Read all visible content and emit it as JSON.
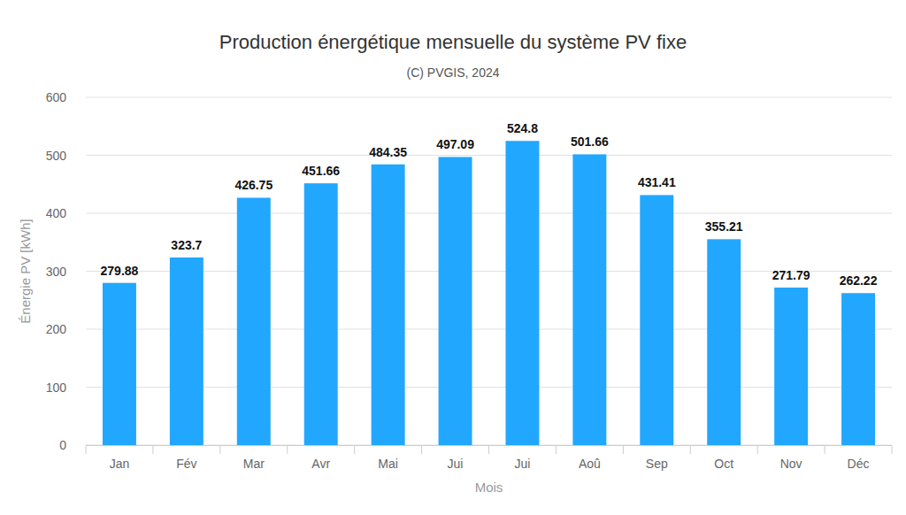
{
  "chart_data": {
    "type": "bar",
    "title": "Production énergétique mensuelle du système PV fixe",
    "subtitle": "(C) PVGIS, 2024",
    "x_label": "Mois",
    "y_label": "Énergie PV [kWh]",
    "categories": [
      "Jan",
      "Fév",
      "Mar",
      "Avr",
      "Mai",
      "Jui",
      "Jui",
      "Aoû",
      "Sep",
      "Oct",
      "Nov",
      "Déc"
    ],
    "values": [
      279.88,
      323.7,
      426.75,
      451.66,
      484.35,
      497.09,
      524.8,
      501.66,
      431.41,
      355.21,
      271.79,
      262.22
    ],
    "color": "#22a7fe",
    "ylim": [
      0,
      600
    ],
    "yticks": [
      0,
      100,
      200,
      300,
      400,
      500,
      600
    ],
    "grid": true,
    "data_labels": true
  }
}
